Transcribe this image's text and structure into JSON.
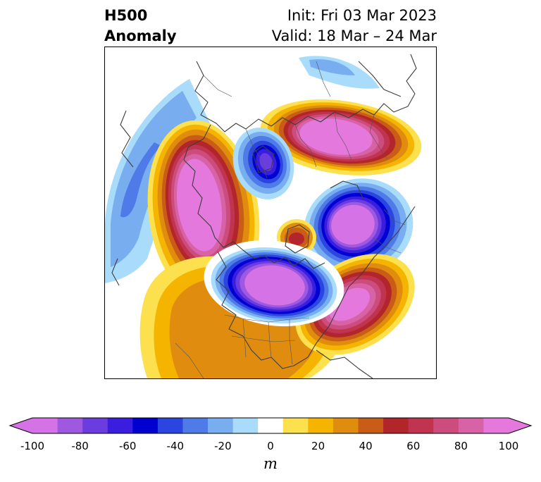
{
  "title": {
    "left_line1": "H500",
    "left_line2": "Anomaly",
    "right_line1": "Init: Fri 03 Mar 2023",
    "right_line2": "Valid: 18 Mar – 24 Mar"
  },
  "colorbar": {
    "unit": "m",
    "tick_labels": [
      "-100",
      "-80",
      "-60",
      "-40",
      "-20",
      "0",
      "20",
      "40",
      "60",
      "80",
      "100"
    ],
    "levels": [
      -100,
      -90,
      -80,
      -70,
      -60,
      -50,
      -40,
      -30,
      -20,
      -10,
      10,
      20,
      30,
      40,
      50,
      60,
      70,
      80,
      90,
      100
    ],
    "colors": [
      "#d573e6",
      "#9f59e0",
      "#6b3de0",
      "#3a1ee0",
      "#0000d0",
      "#2b45e0",
      "#4f7be8",
      "#78aef0",
      "#a9dcfb",
      "#ffffff",
      "#fce04e",
      "#f4b400",
      "#e08c0e",
      "#c95c17",
      "#b2252b",
      "#c0344f",
      "#cc4c7d",
      "#d862a6",
      "#e478dc"
    ],
    "extend_low_color": "#d573e6",
    "extend_high_color": "#e478dc"
  },
  "map": {
    "projection": "north-polar-stereographic",
    "field": "500 hPa geopotential height anomaly"
  }
}
